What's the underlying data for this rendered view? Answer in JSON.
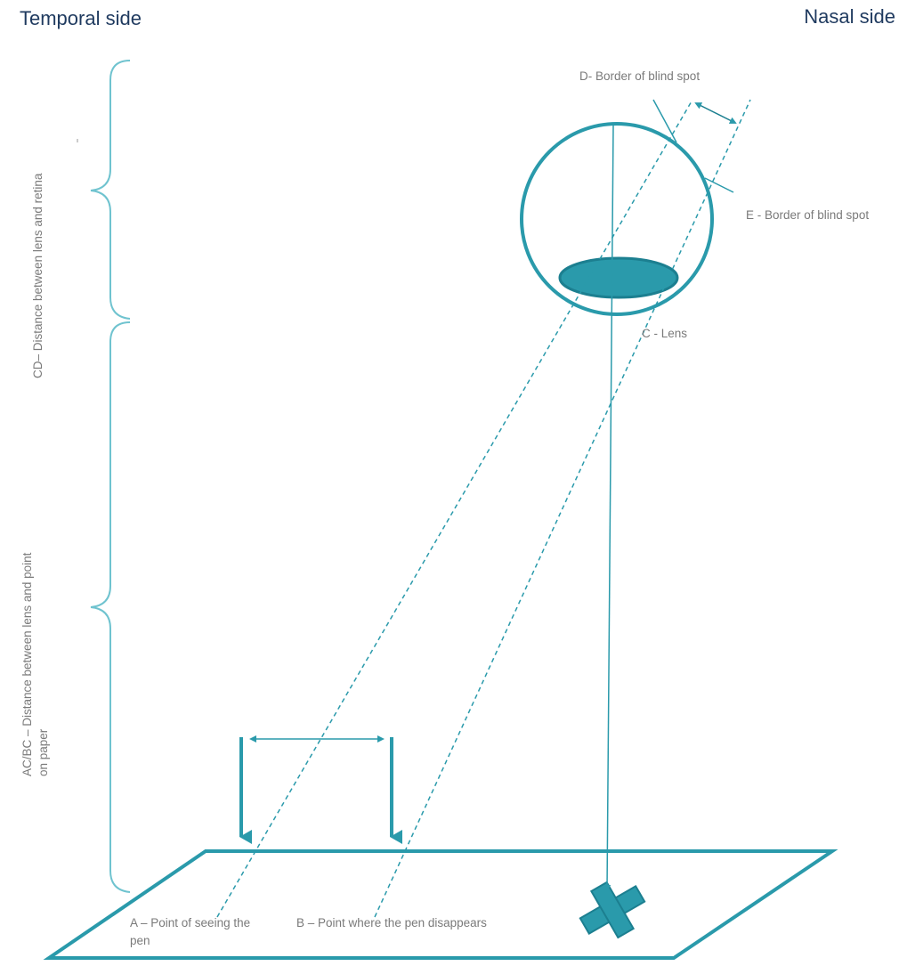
{
  "labels": {
    "temporal_side": "Temporal side",
    "nasal_side": "Nasal side",
    "d_border": "D- Border of blind spot",
    "e_border": "E - Border of blind spot",
    "c_lens": "C - Lens",
    "a_point": "A – Point of seeing the pen",
    "b_point": "B – Point where the pen disappears",
    "cd_distance": "CD– Distance between lens and retina",
    "acbc_distance_line1": "AC/BC – Distance between lens and point",
    "acbc_distance_line2": "on paper"
  },
  "colors": {
    "teal": "#2a9aab",
    "dark_teal": "#1c7f90",
    "light_teal": "#6fc3cf",
    "label_gray": "#7a7a7a",
    "side_text": "#1f3a5f"
  }
}
